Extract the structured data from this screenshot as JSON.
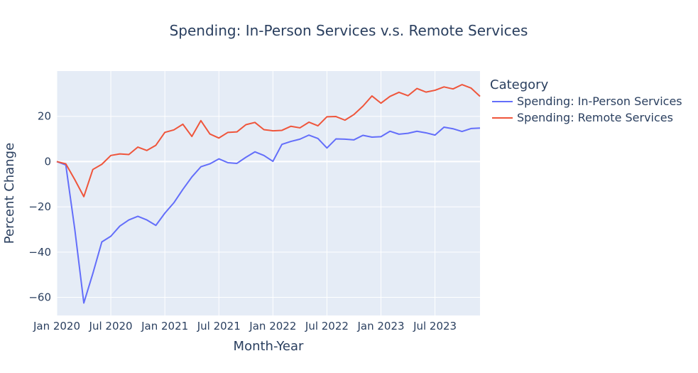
{
  "chart_data": {
    "type": "line",
    "title": "Spending: In-Person Services v.s. Remote Services",
    "xlabel": "Month-Year",
    "ylabel": "Percent Change",
    "legend_title": "Category",
    "legend_position": "right",
    "grid": true,
    "xlim": [
      "2020-01",
      "2023-12"
    ],
    "ylim": [
      -68,
      40
    ],
    "x_ticks": [
      {
        "label": "Jan 2020",
        "at": "2020-01"
      },
      {
        "label": "Jul 2020",
        "at": "2020-07"
      },
      {
        "label": "Jan 2021",
        "at": "2021-01"
      },
      {
        "label": "Jul 2021",
        "at": "2021-07"
      },
      {
        "label": "Jan 2022",
        "at": "2022-01"
      },
      {
        "label": "Jul 2022",
        "at": "2022-07"
      },
      {
        "label": "Jan 2023",
        "at": "2023-01"
      },
      {
        "label": "Jul 2023",
        "at": "2023-07"
      }
    ],
    "y_ticks": [
      {
        "label": "20",
        "value": 20
      },
      {
        "label": "0",
        "value": 0
      },
      {
        "label": "−20",
        "value": -20
      },
      {
        "label": "−40",
        "value": -40
      },
      {
        "label": "−60",
        "value": -60
      }
    ],
    "x": [
      "2020-01",
      "2020-02",
      "2020-03",
      "2020-04",
      "2020-05",
      "2020-06",
      "2020-07",
      "2020-08",
      "2020-09",
      "2020-10",
      "2020-11",
      "2020-12",
      "2021-01",
      "2021-02",
      "2021-03",
      "2021-04",
      "2021-05",
      "2021-06",
      "2021-07",
      "2021-08",
      "2021-09",
      "2021-10",
      "2021-11",
      "2021-12",
      "2022-01",
      "2022-02",
      "2022-03",
      "2022-04",
      "2022-05",
      "2022-06",
      "2022-07",
      "2022-08",
      "2022-09",
      "2022-10",
      "2022-11",
      "2022-12",
      "2023-01",
      "2023-02",
      "2023-03",
      "2023-04",
      "2023-05",
      "2023-06",
      "2023-07",
      "2023-08",
      "2023-09",
      "2023-10",
      "2023-11",
      "2023-12"
    ],
    "series": [
      {
        "name": "Spending: In-Person Services",
        "color": "#636efa",
        "values": [
          0.0,
          -1.5,
          -30.0,
          -62.5,
          -49.5,
          -35.5,
          -33.0,
          -28.5,
          -25.8,
          -24.2,
          -25.8,
          -28.2,
          -22.8,
          -18.2,
          -12.3,
          -6.8,
          -2.3,
          -1.0,
          1.2,
          -0.5,
          -0.8,
          1.9,
          4.3,
          2.7,
          0.1,
          7.6,
          8.9,
          9.9,
          11.7,
          10.2,
          6.0,
          10.0,
          9.9,
          9.6,
          11.6,
          10.8,
          11.0,
          13.4,
          12.1,
          12.5,
          13.4,
          12.7,
          11.7,
          15.2,
          14.5,
          13.3,
          14.6,
          14.8
        ]
      },
      {
        "name": "Spending: Remote Services",
        "color": "#ef553b",
        "values": [
          0.0,
          -1.0,
          -8.0,
          -15.5,
          -3.5,
          -1.2,
          2.7,
          3.4,
          3.1,
          6.4,
          4.9,
          7.2,
          12.9,
          14.0,
          16.5,
          11.1,
          18.1,
          12.2,
          10.4,
          12.9,
          13.1,
          16.3,
          17.3,
          14.1,
          13.6,
          13.8,
          15.6,
          14.9,
          17.4,
          15.8,
          19.8,
          19.9,
          18.3,
          20.8,
          24.5,
          29.0,
          25.8,
          28.8,
          30.6,
          29.1,
          32.3,
          30.7,
          31.5,
          33.0,
          32.1,
          34.0,
          32.5,
          28.8
        ]
      }
    ]
  }
}
